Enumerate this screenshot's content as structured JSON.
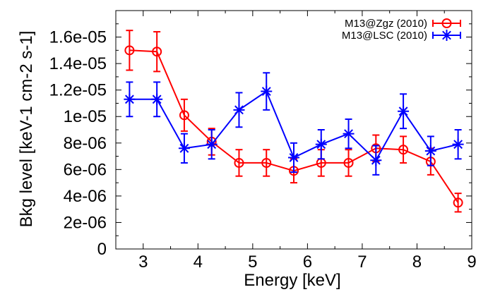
{
  "chart_data": {
    "type": "line",
    "title": "",
    "xlabel": "Energy [keV]",
    "ylabel": "Bkg level [keV-1 cm-2 s-1]",
    "xlim": [
      2.5,
      9
    ],
    "ylim": [
      0,
      1.8e-05
    ],
    "xticks": [
      3,
      4,
      5,
      6,
      7,
      8,
      9
    ],
    "yticks": [
      0,
      2e-06,
      4e-06,
      6e-06,
      8e-06,
      1e-05,
      1.2e-05,
      1.4e-05,
      1.6e-05
    ],
    "xtick_labels": [
      "3",
      "4",
      "5",
      "6",
      "7",
      "8",
      "9"
    ],
    "ytick_labels": [
      "0",
      "2e-06",
      "4e-06",
      "6e-06",
      "8e-06",
      "1e-05",
      "1.2e-05",
      "1.4e-05",
      "1.6e-05"
    ],
    "grid": false,
    "legend_position": "top-right",
    "series": [
      {
        "name": "M13@Zgz (2010)",
        "color": "#ff0000",
        "marker": "circle",
        "x": [
          2.75,
          3.25,
          3.75,
          4.25,
          4.75,
          5.25,
          5.75,
          6.25,
          6.75,
          7.25,
          7.75,
          8.25,
          8.75
        ],
        "y": [
          1.5e-05,
          1.49e-05,
          1.01e-05,
          8.1e-06,
          6.5e-06,
          6.5e-06,
          5.9e-06,
          6.5e-06,
          6.5e-06,
          7.6e-06,
          7.5e-06,
          6.6e-06,
          3.5e-06
        ],
        "err": [
          1.5e-06,
          1.5e-06,
          1.2e-06,
          1e-06,
          1e-06,
          1e-06,
          9e-07,
          1e-06,
          1e-06,
          1e-06,
          1e-06,
          1e-06,
          7e-07
        ]
      },
      {
        "name": "M13@LSC (2010)",
        "color": "#0000ff",
        "marker": "star",
        "x": [
          2.75,
          3.25,
          3.75,
          4.25,
          4.75,
          5.25,
          5.75,
          6.25,
          6.75,
          7.25,
          7.75,
          8.25,
          8.75
        ],
        "y": [
          1.13e-05,
          1.13e-05,
          7.6e-06,
          7.9e-06,
          1.05e-05,
          1.19e-05,
          6.9e-06,
          7.9e-06,
          8.7e-06,
          6.7e-06,
          1.04e-05,
          7.4e-06,
          7.9e-06
        ],
        "err": [
          1.3e-06,
          1.3e-06,
          1.1e-06,
          1.1e-06,
          1.3e-06,
          1.4e-06,
          1.1e-06,
          1.1e-06,
          1.1e-06,
          1.1e-06,
          1.3e-06,
          1.1e-06,
          1.1e-06
        ]
      }
    ]
  }
}
